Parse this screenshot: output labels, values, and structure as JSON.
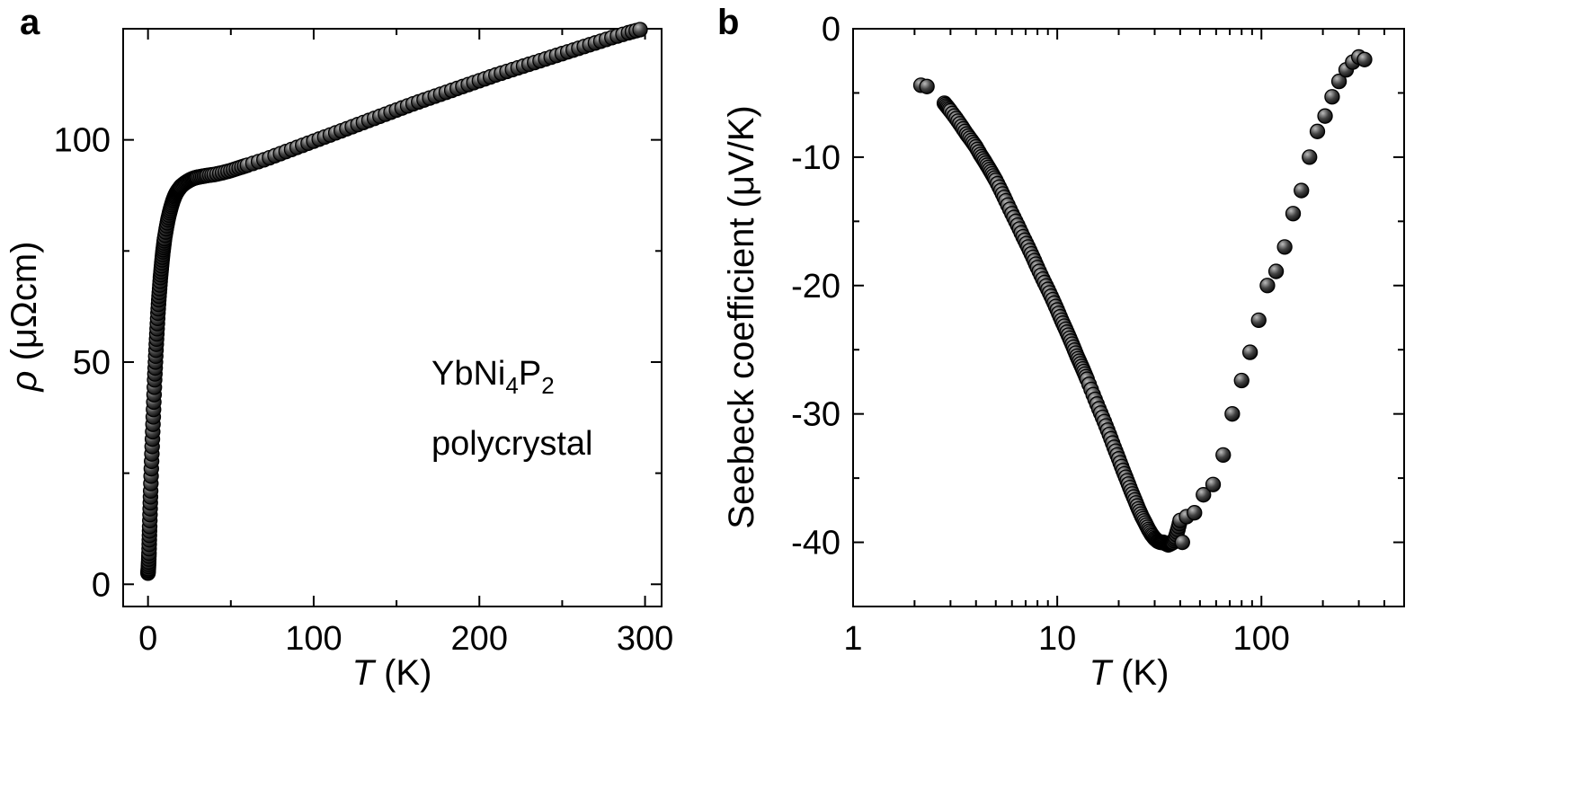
{
  "chart_data": [
    {
      "panel": "a",
      "type": "scatter",
      "xlabel_italic": "T",
      "xlabel_rest": " (K)",
      "ylabel_italic": "ρ",
      "ylabel_rest": " (μΩcm)",
      "xlim": [
        -15,
        310
      ],
      "ylim": [
        -5,
        125
      ],
      "xticks": [
        0,
        100,
        200,
        300
      ],
      "xtick_labels": [
        "0",
        "100",
        "200",
        "300"
      ],
      "yticks": [
        0,
        50,
        100
      ],
      "ytick_labels": [
        "0",
        "50",
        "100"
      ],
      "annotation": {
        "line1_prefix": "YbNi",
        "sub1": "4",
        "line1_mid": "P",
        "sub2": "2",
        "line2": "polycrystal"
      },
      "series": [
        {
          "name": "YbNi4P2 polycrystal",
          "x": [
            0,
            0.2,
            0.4,
            0.6,
            0.8,
            1.0,
            1.3,
            1.6,
            2.0,
            2.5,
            3.0,
            3.5,
            4.0,
            4.5,
            5.0,
            5.5,
            6.0,
            6.5,
            7.0,
            7.5,
            8.0,
            8.5,
            9.0,
            9.5,
            10,
            11,
            12,
            13,
            14,
            15,
            16,
            17,
            18,
            19,
            20,
            22,
            24,
            26,
            28,
            30,
            33,
            36,
            40,
            45,
            50,
            55,
            60,
            70,
            80,
            90,
            100,
            110,
            120,
            130,
            140,
            150,
            160,
            170,
            180,
            190,
            200,
            210,
            220,
            230,
            240,
            250,
            260,
            270,
            280,
            290,
            297
          ],
          "y": [
            2.5,
            3.5,
            5,
            7,
            10,
            13,
            17,
            21,
            26,
            31,
            36,
            41,
            46,
            50,
            54,
            57.5,
            61,
            64,
            66.5,
            69,
            71,
            73,
            74.8,
            76.3,
            77.8,
            80,
            82,
            83.6,
            85,
            86.2,
            87.2,
            88,
            88.6,
            89.1,
            89.6,
            90.2,
            90.7,
            91.1,
            91.4,
            91.6,
            91.8,
            92,
            92.2,
            92.6,
            93.1,
            93.7,
            94.3,
            95.5,
            96.9,
            98.3,
            99.7,
            101.1,
            102.5,
            103.9,
            105.3,
            106.7,
            108.1,
            109.4,
            110.7,
            112,
            113.3,
            114.6,
            115.8,
            117,
            118.2,
            119.4,
            120.6,
            121.8,
            123,
            124.1,
            124.8
          ]
        }
      ]
    },
    {
      "panel": "b",
      "type": "scatter",
      "xscale": "log",
      "xlabel_italic": "T",
      "xlabel_rest": " (K)",
      "ylabel": "Seebeck coefficient (μV/K)",
      "xlim": [
        1,
        500
      ],
      "ylim": [
        -45,
        0
      ],
      "xticks": [
        1,
        10,
        100
      ],
      "xtick_labels": [
        "1",
        "10",
        "100"
      ],
      "yticks": [
        0,
        -10,
        -20,
        -30,
        -40
      ],
      "ytick_labels": [
        "0",
        "-10",
        "-20",
        "-30",
        "-40"
      ],
      "series": [
        {
          "name": "Seebeck coefficient",
          "x": [
            2.15,
            2.3,
            2.8,
            2.9,
            3.0,
            3.2,
            3.4,
            3.6,
            3.8,
            4.0,
            4.2,
            4.4,
            4.6,
            4.8,
            5.0,
            5.3,
            5.6,
            6.0,
            6.4,
            6.8,
            7.2,
            7.6,
            8.0,
            8.5,
            9.0,
            9.5,
            10,
            10.5,
            11,
            11.5,
            12,
            12.5,
            13,
            13.5,
            14,
            15,
            16,
            17,
            18,
            19,
            20,
            21,
            22,
            23,
            24,
            25,
            26,
            27,
            28,
            29,
            30,
            31,
            32,
            33,
            34,
            35,
            36,
            37,
            38,
            39,
            40,
            41,
            43,
            47,
            52,
            58,
            65,
            72,
            80,
            88,
            97,
            107,
            118,
            130,
            143,
            157,
            172,
            188,
            205,
            222,
            240,
            260,
            280,
            300,
            320
          ],
          "y": [
            -4.4,
            -4.5,
            -5.8,
            -6.1,
            -6.4,
            -7.0,
            -7.6,
            -8.2,
            -8.7,
            -9.2,
            -9.8,
            -10.3,
            -10.8,
            -11.3,
            -11.8,
            -12.6,
            -13.4,
            -14.4,
            -15.3,
            -16.2,
            -17.0,
            -17.8,
            -18.6,
            -19.5,
            -20.3,
            -21.1,
            -21.9,
            -22.7,
            -23.4,
            -24.1,
            -24.8,
            -25.5,
            -26.1,
            -26.7,
            -27.3,
            -28.5,
            -29.6,
            -30.6,
            -31.6,
            -32.6,
            -33.5,
            -34.4,
            -35.2,
            -36.0,
            -36.7,
            -37.4,
            -38.0,
            -38.5,
            -39.0,
            -39.4,
            -39.7,
            -39.9,
            -40.0,
            -40.0,
            -40.1,
            -40.2,
            -40.1,
            -40.0,
            -39.6,
            -39.0,
            -38.3,
            -40.0,
            -38.0,
            -37.7,
            -36.3,
            -35.5,
            -33.2,
            -30.0,
            -27.4,
            -25.2,
            -22.7,
            -20.0,
            -18.9,
            -17.0,
            -14.4,
            -12.6,
            -10.0,
            -8.0,
            -6.8,
            -5.3,
            -4.1,
            -3.2,
            -2.6,
            -2.2,
            -2.4
          ]
        }
      ]
    }
  ]
}
